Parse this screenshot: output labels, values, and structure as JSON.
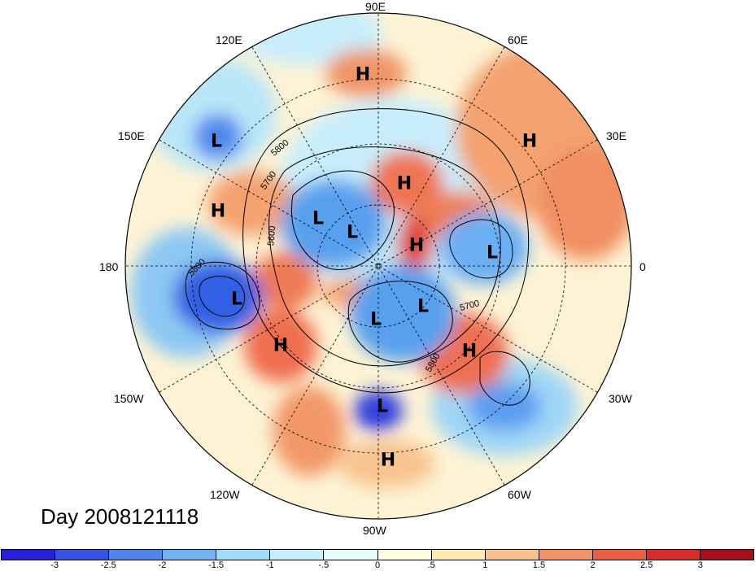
{
  "map": {
    "projection": "north-polar-stereographic",
    "field": "500 hPa geopotential height anomaly (shaded) with height contours",
    "longitude_labels": [
      {
        "id": "lon-90e",
        "text": "90E"
      },
      {
        "id": "lon-60e",
        "text": "60E"
      },
      {
        "id": "lon-120e",
        "text": "120E"
      },
      {
        "id": "lon-30e",
        "text": "30E"
      },
      {
        "id": "lon-150e",
        "text": "150E"
      },
      {
        "id": "lon-180",
        "text": "180"
      },
      {
        "id": "lon-0",
        "text": "0"
      },
      {
        "id": "lon-150w",
        "text": "150W"
      },
      {
        "id": "lon-30w",
        "text": "30W"
      },
      {
        "id": "lon-120w",
        "text": "120W"
      },
      {
        "id": "lon-60w",
        "text": "60W"
      },
      {
        "id": "lon-90w",
        "text": "90W"
      }
    ],
    "pressure_centers": [
      {
        "type": "H"
      },
      {
        "type": "L"
      },
      {
        "type": "H"
      },
      {
        "type": "H"
      },
      {
        "type": "H"
      },
      {
        "type": "L"
      },
      {
        "type": "L"
      },
      {
        "type": "H"
      },
      {
        "type": "L"
      },
      {
        "type": "L"
      },
      {
        "type": "L"
      },
      {
        "type": "L"
      },
      {
        "type": "H"
      },
      {
        "type": "H"
      },
      {
        "type": "L"
      },
      {
        "type": "H"
      }
    ],
    "contour_labels": [
      "5800",
      "5700",
      "5600",
      "5800",
      "5700",
      "5800"
    ]
  },
  "day_label": "Day 2008121118",
  "colorbar": {
    "colors": [
      "#2a1fd8",
      "#3653e6",
      "#4f86ee",
      "#72b3f4",
      "#9edcfa",
      "#c8f0fc",
      "#e9fbfd",
      "#fffde0",
      "#fde9b4",
      "#f8c28c",
      "#f29464",
      "#ea5e44",
      "#d92a2c",
      "#a80f1e"
    ],
    "tick_labels": [
      "-3",
      "-2.5",
      "-2",
      "-1.5",
      "-1",
      "-.5",
      "0",
      ".5",
      "1",
      "1.5",
      "2",
      "2.5",
      "3"
    ]
  }
}
